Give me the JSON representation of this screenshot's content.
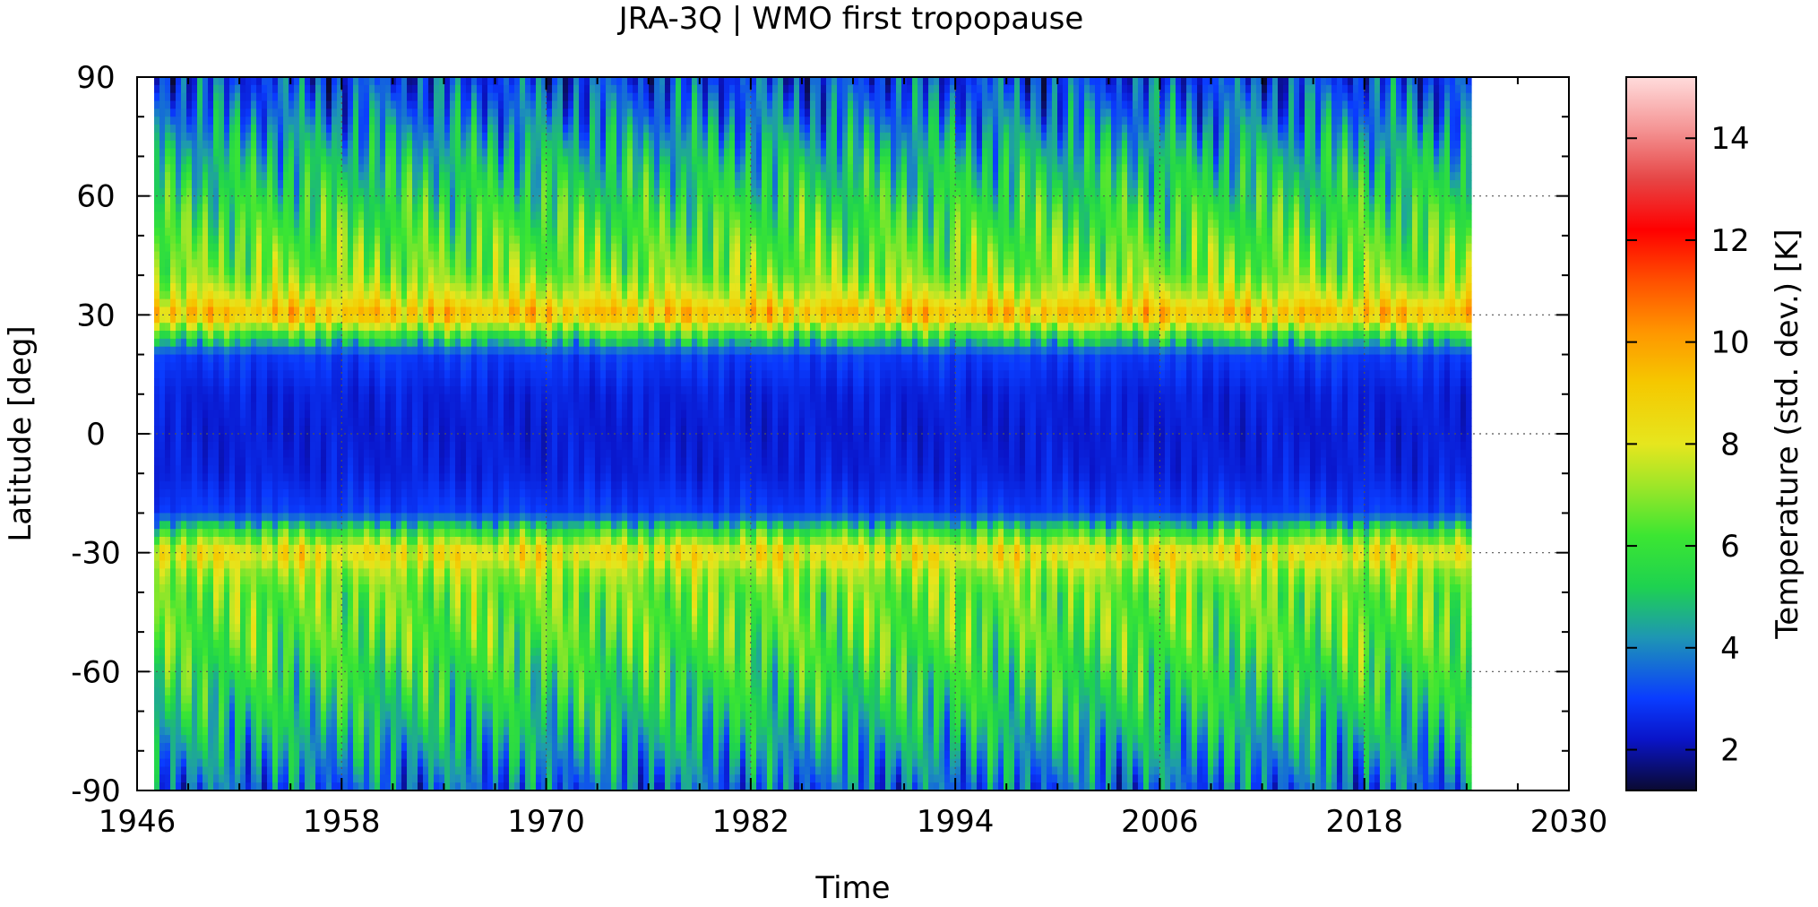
{
  "chart_data": {
    "type": "heatmap",
    "title": "JRA-3Q | WMO first tropopause",
    "xlabel": "Time",
    "ylabel": "Latitude [deg]",
    "xlim": [
      1946,
      2030
    ],
    "ylim": [
      -90,
      90
    ],
    "x_ticks": [
      1946,
      1958,
      1970,
      1982,
      1994,
      2006,
      2018,
      2030
    ],
    "y_ticks": [
      90,
      60,
      30,
      0,
      -30,
      -60,
      -90
    ],
    "data_time_range": [
      1947,
      2024
    ],
    "grid": true,
    "colorbar": {
      "label": "Temperature (std. dev.) [K]",
      "range": [
        1.2,
        15.2
      ],
      "ticks": [
        2,
        4,
        6,
        8,
        10,
        12,
        14
      ],
      "colormap": [
        {
          "v": 1.2,
          "color": "#0a0a30"
        },
        {
          "v": 2.2,
          "color": "#0a14c8"
        },
        {
          "v": 3.0,
          "color": "#0a3cff"
        },
        {
          "v": 4.2,
          "color": "#1e96b4"
        },
        {
          "v": 5.2,
          "color": "#1ed250"
        },
        {
          "v": 6.2,
          "color": "#3ce632"
        },
        {
          "v": 7.2,
          "color": "#a0e628"
        },
        {
          "v": 8.0,
          "color": "#e6e61e"
        },
        {
          "v": 9.2,
          "color": "#f5c800"
        },
        {
          "v": 10.2,
          "color": "#ff9600"
        },
        {
          "v": 11.2,
          "color": "#ff5000"
        },
        {
          "v": 12.2,
          "color": "#ff0000"
        },
        {
          "v": 13.2,
          "color": "#e64646"
        },
        {
          "v": 14.2,
          "color": "#f59696"
        },
        {
          "v": 15.2,
          "color": "#ffdcdc"
        }
      ]
    },
    "latitude_profile": [
      {
        "lat": 90,
        "value": 3.0
      },
      {
        "lat": 80,
        "value": 3.8
      },
      {
        "lat": 70,
        "value": 4.8
      },
      {
        "lat": 60,
        "value": 5.5
      },
      {
        "lat": 50,
        "value": 6.2
      },
      {
        "lat": 40,
        "value": 6.8
      },
      {
        "lat": 35,
        "value": 7.8
      },
      {
        "lat": 30,
        "value": 9.5
      },
      {
        "lat": 25,
        "value": 6.0
      },
      {
        "lat": 20,
        "value": 3.0
      },
      {
        "lat": 10,
        "value": 2.5
      },
      {
        "lat": 0,
        "value": 2.4
      },
      {
        "lat": -10,
        "value": 2.5
      },
      {
        "lat": -20,
        "value": 3.0
      },
      {
        "lat": -25,
        "value": 6.0
      },
      {
        "lat": -30,
        "value": 8.5
      },
      {
        "lat": -35,
        "value": 7.2
      },
      {
        "lat": -40,
        "value": 6.6
      },
      {
        "lat": -50,
        "value": 6.4
      },
      {
        "lat": -60,
        "value": 5.8
      },
      {
        "lat": -70,
        "value": 5.2
      },
      {
        "lat": -80,
        "value": 4.4
      },
      {
        "lat": -90,
        "value": 3.5
      }
    ]
  }
}
